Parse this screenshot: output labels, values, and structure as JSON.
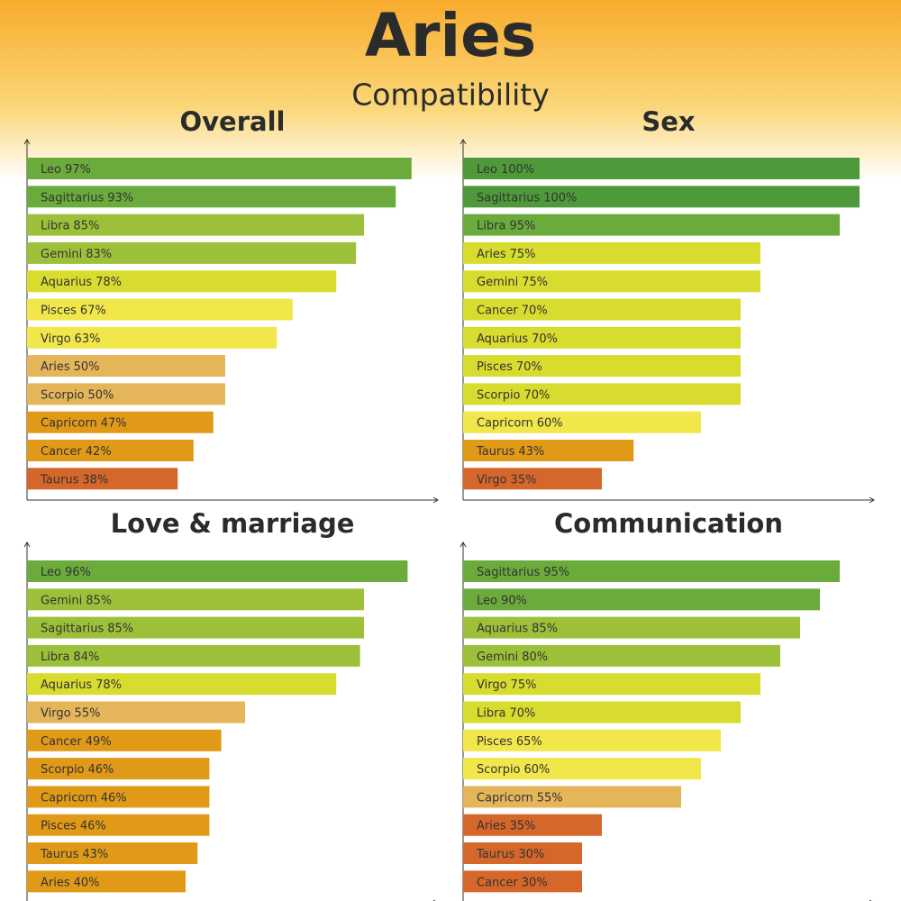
{
  "header": {
    "title": "Aries",
    "subtitle": "Compatibility"
  },
  "chart_data": [
    {
      "type": "bar",
      "orientation": "horizontal",
      "title": "Overall",
      "categories": [
        "Leo",
        "Sagittarius",
        "Libra",
        "Gemini",
        "Aquarius",
        "Pisces",
        "Virgo",
        "Aries",
        "Scorpio",
        "Capricorn",
        "Cancer",
        "Taurus"
      ],
      "values": [
        97,
        93,
        85,
        83,
        78,
        67,
        63,
        50,
        50,
        47,
        42,
        38
      ],
      "value_labels": [
        "97%",
        "93%",
        "85%",
        "83%",
        "78%",
        "67%",
        "63%",
        "50%",
        "50%",
        "47%",
        "42%",
        "38%"
      ],
      "colors": [
        "#6aab3c",
        "#6aab3c",
        "#9dc03a",
        "#9dc03a",
        "#d8dc2e",
        "#f1e64a",
        "#f1e64a",
        "#e5b55a",
        "#e5b55a",
        "#e09a18",
        "#e09a18",
        "#d5672a"
      ],
      "xlim": [
        0,
        100
      ]
    },
    {
      "type": "bar",
      "orientation": "horizontal",
      "title": "Sex",
      "categories": [
        "Leo",
        "Sagittarius",
        "Libra",
        "Aries",
        "Gemini",
        "Cancer",
        "Aquarius",
        "Pisces",
        "Scorpio",
        "Capricorn",
        "Taurus",
        "Virgo"
      ],
      "values": [
        100,
        100,
        95,
        75,
        75,
        70,
        70,
        70,
        70,
        60,
        43,
        35
      ],
      "value_labels": [
        "100%",
        "100%",
        "95%",
        "75%",
        "75%",
        "70%",
        "70%",
        "70%",
        "70%",
        "60%",
        "43%",
        "35%"
      ],
      "colors": [
        "#4e9a3a",
        "#4e9a3a",
        "#6aab3c",
        "#d8dc2e",
        "#d8dc2e",
        "#d8dc2e",
        "#d8dc2e",
        "#d8dc2e",
        "#d8dc2e",
        "#f1e64a",
        "#e09a18",
        "#d5672a"
      ],
      "xlim": [
        0,
        100
      ]
    },
    {
      "type": "bar",
      "orientation": "horizontal",
      "title": "Love & marriage",
      "categories": [
        "Leo",
        "Gemini",
        "Sagittarius",
        "Libra",
        "Aquarius",
        "Virgo",
        "Cancer",
        "Scorpio",
        "Capricorn",
        "Pisces",
        "Taurus",
        "Aries"
      ],
      "values": [
        96,
        85,
        85,
        84,
        78,
        55,
        49,
        46,
        46,
        46,
        43,
        40
      ],
      "value_labels": [
        "96%",
        "85%",
        "85%",
        "84%",
        "78%",
        "55%",
        "49%",
        "46%",
        "46%",
        "46%",
        "43%",
        "40%"
      ],
      "colors": [
        "#6aab3c",
        "#9dc03a",
        "#9dc03a",
        "#9dc03a",
        "#d8dc2e",
        "#e5b55a",
        "#e09a18",
        "#e09a18",
        "#e09a18",
        "#e09a18",
        "#e09a18",
        "#e09a18"
      ],
      "xlim": [
        0,
        100
      ]
    },
    {
      "type": "bar",
      "orientation": "horizontal",
      "title": "Communication",
      "categories": [
        "Sagittarius",
        "Leo",
        "Aquarius",
        "Gemini",
        "Virgo",
        "Libra",
        "Pisces",
        "Scorpio",
        "Capricorn",
        "Aries",
        "Taurus",
        "Cancer"
      ],
      "values": [
        95,
        90,
        85,
        80,
        75,
        70,
        65,
        60,
        55,
        35,
        30,
        30
      ],
      "value_labels": [
        "95%",
        "90%",
        "85%",
        "80%",
        "75%",
        "70%",
        "65%",
        "60%",
        "55%",
        "35%",
        "30%",
        "30%"
      ],
      "colors": [
        "#6aab3c",
        "#6aab3c",
        "#9dc03a",
        "#9dc03a",
        "#d8dc2e",
        "#d8dc2e",
        "#f1e64a",
        "#f1e64a",
        "#e5b55a",
        "#d5672a",
        "#d5672a",
        "#d5672a"
      ],
      "xlim": [
        0,
        100
      ]
    }
  ]
}
